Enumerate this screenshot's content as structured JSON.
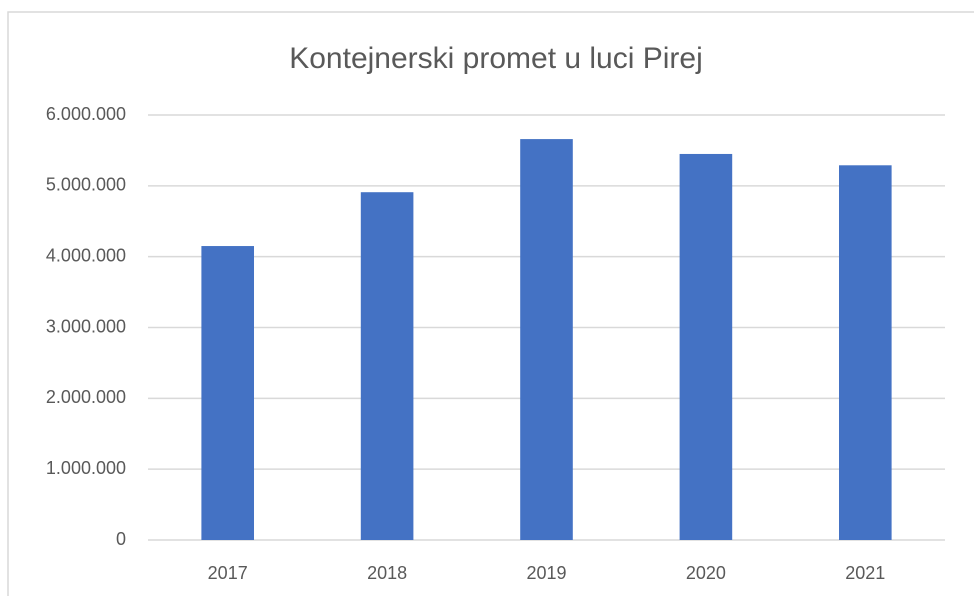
{
  "chart_data": {
    "type": "bar",
    "title": "Kontejnerski promet u luci Pirej",
    "categories": [
      "2017",
      "2018",
      "2019",
      "2020",
      "2021"
    ],
    "values": [
      4150000,
      4910000,
      5660000,
      5450000,
      5290000
    ],
    "color": "#4472c4",
    "ylim": [
      0,
      6000000
    ],
    "yticks": [
      0,
      {
        "value": 1000000,
        "label": "1.000.000"
      },
      {
        "value": 2000000,
        "label": "2.000.000"
      },
      {
        "value": 3000000,
        "label": "3.000.000"
      },
      {
        "value": 4000000,
        "label": "4.000.000"
      },
      {
        "value": 5000000,
        "label": "5.000.000"
      },
      {
        "value": 6000000,
        "label": "6.000.000"
      }
    ],
    "grid": true
  }
}
